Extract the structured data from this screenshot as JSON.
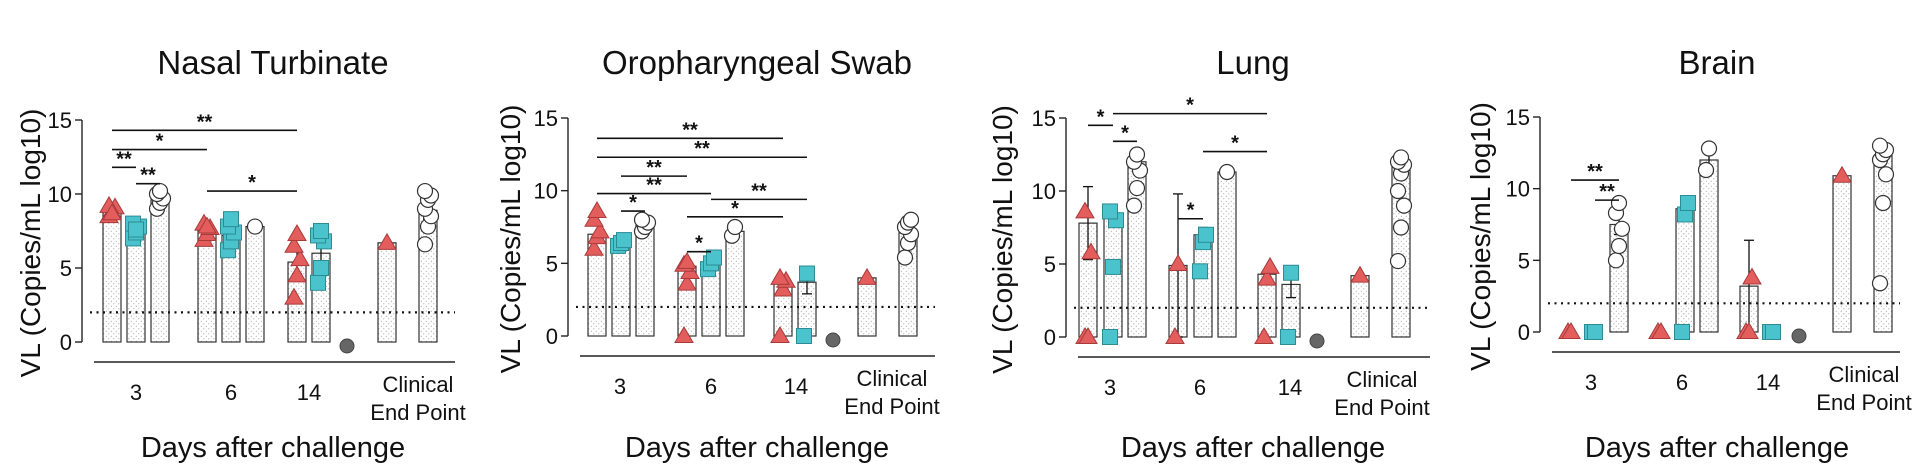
{
  "colors": {
    "triangle": "#e35d5d",
    "square": "#4bc3cd",
    "circle": "#ffffff",
    "grey_marker": "#666666",
    "bar_dots": "#9a9a9a"
  },
  "chart_data": [
    {
      "type": "bar",
      "title": "Nasal Turbinate",
      "xlabel": "Days after challenge",
      "ylabel": "VL (Copies/mL log10)",
      "ylim": [
        0,
        15
      ],
      "yticks": [
        "0",
        "5",
        "10",
        "15"
      ],
      "limit_of_detection": 2,
      "categories": [
        "3",
        "6",
        "14"
      ],
      "end_point_label": [
        "Clinical",
        "End Point"
      ],
      "groups": [
        {
          "day": "3",
          "bars": [
            {
              "marker": "triangle",
              "mean": 8.9,
              "points": [
                8.5,
                8.8,
                9.1,
                9.2,
                8.7
              ]
            },
            {
              "marker": "square",
              "mean": 7.6,
              "points": [
                7.0,
                7.4,
                7.8,
                8.0,
                7.6
              ]
            },
            {
              "marker": "circle",
              "mean": 9.6,
              "points": [
                9.0,
                9.4,
                9.7,
                10.0,
                10.2
              ]
            }
          ]
        },
        {
          "day": "6",
          "bars": [
            {
              "marker": "triangle",
              "mean": 7.5,
              "points": [
                6.9,
                7.3,
                7.7,
                8.0,
                7.8
              ]
            },
            {
              "marker": "square",
              "mean": 7.2,
              "points": [
                6.2,
                6.8,
                7.4,
                7.8,
                8.3
              ]
            },
            {
              "marker": "circle",
              "mean": 7.8,
              "points": [
                7.8
              ]
            }
          ]
        },
        {
          "day": "14",
          "bars": [
            {
              "marker": "triangle",
              "mean": 5.4,
              "err": 0.8,
              "points": [
                3.0,
                4.5,
                5.6,
                6.5,
                7.3
              ]
            },
            {
              "marker": "square",
              "mean": 6.0,
              "err": 0.7,
              "points": [
                4.0,
                5.0,
                6.8,
                7.2,
                7.5
              ]
            }
          ],
          "grey_point": 0
        },
        {
          "day": "Clinical End Point",
          "bars": [
            {
              "marker": "triangle",
              "mean": 6.7,
              "points": [
                6.7
              ]
            },
            {
              "marker": "circle",
              "mean": 8.9,
              "err": 0.6,
              "points": [
                6.6,
                7.8,
                8.5,
                9.0,
                9.6,
                9.9,
                10.2
              ]
            }
          ]
        }
      ],
      "significance": [
        {
          "label": "**",
          "from": "day3-triangle",
          "to": "day14-triangle",
          "y": 14.3
        },
        {
          "label": "*",
          "from": "day3-triangle",
          "to": "day6-triangle",
          "y": 13.0
        },
        {
          "label": "**",
          "from": "day3-triangle",
          "to": "day3-square",
          "y": 11.8
        },
        {
          "label": "**",
          "from": "day3-square",
          "to": "day3-circle",
          "y": 10.7
        },
        {
          "label": "*",
          "from": "day6-triangle",
          "to": "day14-triangle",
          "y": 10.2
        }
      ]
    },
    {
      "type": "bar",
      "title": "Oropharyngeal Swab",
      "xlabel": "Days after challenge",
      "ylabel": "VL (Copies/mL log10)",
      "ylim": [
        0,
        15
      ],
      "yticks": [
        "0",
        "5",
        "10",
        "15"
      ],
      "limit_of_detection": 2,
      "categories": [
        "3",
        "6",
        "14"
      ],
      "end_point_label": [
        "Clinical",
        "End Point"
      ],
      "groups": [
        {
          "day": "3",
          "bars": [
            {
              "marker": "triangle",
              "mean": 7.0,
              "points": [
                6.0,
                6.8,
                7.2,
                8.0,
                8.6
              ]
            },
            {
              "marker": "square",
              "mean": 6.4,
              "points": [
                6.2,
                6.4,
                6.6
              ]
            },
            {
              "marker": "circle",
              "mean": 7.6,
              "points": [
                7.2,
                7.5,
                7.8,
                8.0
              ]
            }
          ]
        },
        {
          "day": "6",
          "bars": [
            {
              "marker": "triangle",
              "mean": 4.8,
              "points": [
                0,
                3.6,
                4.4,
                4.9,
                5.1
              ]
            },
            {
              "marker": "square",
              "mean": 4.9,
              "points": [
                4.6,
                5.0,
                5.4
              ]
            },
            {
              "marker": "circle",
              "mean": 7.2,
              "err": 0.4,
              "points": [
                6.9,
                7.5
              ]
            }
          ]
        },
        {
          "day": "14",
          "bars": [
            {
              "marker": "triangle",
              "mean": 3.6,
              "points": [
                0,
                3.2,
                3.8,
                4.0
              ]
            },
            {
              "marker": "square",
              "mean": 3.7,
              "err": 0.8,
              "points": [
                0,
                4.3
              ]
            }
          ],
          "grey_point": 0
        },
        {
          "day": "Clinical End Point",
          "bars": [
            {
              "marker": "triangle",
              "mean": 4.0,
              "points": [
                4.0
              ]
            },
            {
              "marker": "circle",
              "mean": 7.1,
              "err": 0.5,
              "points": [
                5.4,
                6.4,
                7.0,
                7.5,
                7.8,
                8.0
              ]
            }
          ]
        }
      ],
      "significance": [
        {
          "label": "**",
          "from": "day3-triangle",
          "to": "day14-triangle",
          "y": 13.6
        },
        {
          "label": "**",
          "from": "day3-triangle",
          "to": "day14-square",
          "y": 12.3
        },
        {
          "label": "**",
          "from": "day3-square",
          "to": "day6-triangle",
          "y": 11.0
        },
        {
          "label": "**",
          "from": "day3-triangle",
          "to": "day6-square",
          "y": 9.8
        },
        {
          "label": "*",
          "from": "day3-square",
          "to": "day3-circle",
          "y": 8.6
        },
        {
          "label": "**",
          "from": "day6-square",
          "to": "day14-square",
          "y": 9.4
        },
        {
          "label": "*",
          "from": "day6-triangle",
          "to": "day14-triangle",
          "y": 8.2
        },
        {
          "label": "*",
          "from": "day6-triangle",
          "to": "day6-square",
          "y": 5.8
        }
      ]
    },
    {
      "type": "bar",
      "title": "Lung",
      "xlabel": "Days after challenge",
      "ylabel": "VL (Copies/mL log10)",
      "ylim": [
        0,
        15
      ],
      "yticks": [
        "0",
        "5",
        "10",
        "15"
      ],
      "limit_of_detection": 2,
      "categories": [
        "3",
        "6",
        "14"
      ],
      "end_point_label": [
        "Clinical",
        "End Point"
      ],
      "groups": [
        {
          "day": "3",
          "bars": [
            {
              "marker": "triangle",
              "mean": 7.8,
              "err": 2.5,
              "points": [
                0,
                0,
                5.8,
                8.6
              ]
            },
            {
              "marker": "square",
              "mean": 8.3,
              "points": [
                0,
                4.8,
                8.0,
                8.6
              ]
            },
            {
              "marker": "circle",
              "mean": 12.0,
              "err": 0.4,
              "points": [
                9.0,
                10.2,
                11.4,
                12.0,
                12.5
              ]
            }
          ]
        },
        {
          "day": "6",
          "bars": [
            {
              "marker": "triangle",
              "mean": 4.9,
              "err": 4.9,
              "points": [
                0,
                5.0
              ]
            },
            {
              "marker": "square",
              "mean": 7.0,
              "err": 0.5,
              "points": [
                4.5,
                6.5,
                7.0
              ]
            },
            {
              "marker": "circle",
              "mean": 11.3,
              "points": [
                11.3
              ]
            }
          ]
        },
        {
          "day": "14",
          "bars": [
            {
              "marker": "triangle",
              "mean": 4.3,
              "points": [
                0,
                4.0,
                4.8
              ]
            },
            {
              "marker": "square",
              "mean": 3.6,
              "err": 0.9,
              "points": [
                0,
                4.4
              ]
            }
          ],
          "grey_point": 0
        },
        {
          "day": "Clinical End Point",
          "bars": [
            {
              "marker": "triangle",
              "mean": 4.2,
              "points": [
                4.2
              ]
            },
            {
              "marker": "circle",
              "mean": 11.8,
              "points": [
                5.2,
                7.5,
                9.0,
                10.0,
                11.2,
                11.8,
                12.0,
                12.3
              ]
            }
          ]
        }
      ],
      "significance": [
        {
          "label": "*",
          "from": "day3-square",
          "to": "day14-triangle",
          "y": 15.3
        },
        {
          "label": "*",
          "from": "day3-triangle",
          "to": "day3-square",
          "y": 14.5
        },
        {
          "label": "*",
          "from": "day3-square",
          "to": "day3-circle",
          "y": 13.4
        },
        {
          "label": "*",
          "from": "day6-square",
          "to": "day14-triangle",
          "y": 12.7
        },
        {
          "label": "*",
          "from": "day6-triangle",
          "to": "day6-square",
          "y": 8.1
        }
      ]
    },
    {
      "type": "bar",
      "title": "Brain",
      "xlabel": "Days after challenge",
      "ylabel": "VL (Copies/mL log10)",
      "ylim": [
        0,
        15
      ],
      "yticks": [
        "0",
        "5",
        "10",
        "15"
      ],
      "limit_of_detection": 2,
      "categories": [
        "3",
        "6",
        "14"
      ],
      "end_point_label": [
        "Clinical",
        "End Point"
      ],
      "groups": [
        {
          "day": "3",
          "bars": [
            {
              "marker": "triangle",
              "mean": 0,
              "points": [
                0,
                0
              ]
            },
            {
              "marker": "square",
              "mean": 0,
              "points": [
                0,
                0
              ]
            },
            {
              "marker": "circle",
              "mean": 7.5,
              "err": 0.7,
              "points": [
                5.0,
                6.0,
                7.2,
                8.3,
                9.0
              ]
            }
          ]
        },
        {
          "day": "6",
          "bars": [
            {
              "marker": "triangle",
              "mean": 0,
              "points": [
                0,
                0
              ]
            },
            {
              "marker": "square",
              "mean": 8.6,
              "points": [
                0,
                8.2,
                9.0
              ]
            },
            {
              "marker": "circle",
              "mean": 12.0,
              "err": 0.8,
              "points": [
                11.3,
                12.8
              ]
            }
          ]
        },
        {
          "day": "14",
          "bars": [
            {
              "marker": "triangle",
              "mean": 3.2,
              "err": 3.2,
              "points": [
                0,
                0,
                3.8
              ]
            },
            {
              "marker": "square",
              "mean": 0,
              "points": [
                0,
                0
              ]
            }
          ],
          "grey_point": 0
        },
        {
          "day": "Clinical End Point",
          "bars": [
            {
              "marker": "triangle",
              "mean": 10.9,
              "points": [
                10.9
              ]
            },
            {
              "marker": "circle",
              "mean": 12.3,
              "points": [
                3.4,
                9.0,
                11.0,
                12.0,
                12.4,
                12.7,
                13.0
              ]
            }
          ]
        }
      ],
      "significance": [
        {
          "label": "**",
          "from": "day3-triangle",
          "to": "day3-circle",
          "y": 10.6
        },
        {
          "label": "**",
          "from": "day3-square",
          "to": "day3-circle",
          "y": 9.2
        }
      ]
    }
  ]
}
